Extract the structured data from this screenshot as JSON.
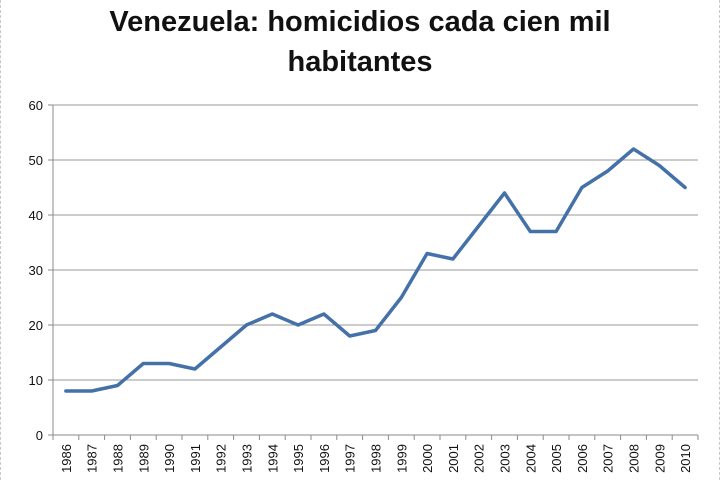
{
  "chart_data": {
    "type": "line",
    "title_lines": [
      "Venezuela: homicidios cada cien mil",
      "habitantes"
    ],
    "xlabel": "",
    "ylabel": "",
    "ylim": [
      0,
      60
    ],
    "yticks": [
      0,
      10,
      20,
      30,
      40,
      50,
      60
    ],
    "grid": true,
    "legend": "none",
    "categories": [
      "1986",
      "1987",
      "1988",
      "1989",
      "1990",
      "1991",
      "1992",
      "1993",
      "1994",
      "1995",
      "1996",
      "1997",
      "1998",
      "1999",
      "2000",
      "2001",
      "2002",
      "2003",
      "2004",
      "2005",
      "2006",
      "2007",
      "2008",
      "2009",
      "2010"
    ],
    "series": [
      {
        "color": "#4472a8",
        "values": [
          8,
          8,
          9,
          13,
          13,
          12,
          16,
          20,
          22,
          20,
          22,
          18,
          19,
          25,
          33,
          32,
          38,
          44,
          37,
          37,
          45,
          48,
          52,
          49,
          45
        ]
      }
    ]
  }
}
